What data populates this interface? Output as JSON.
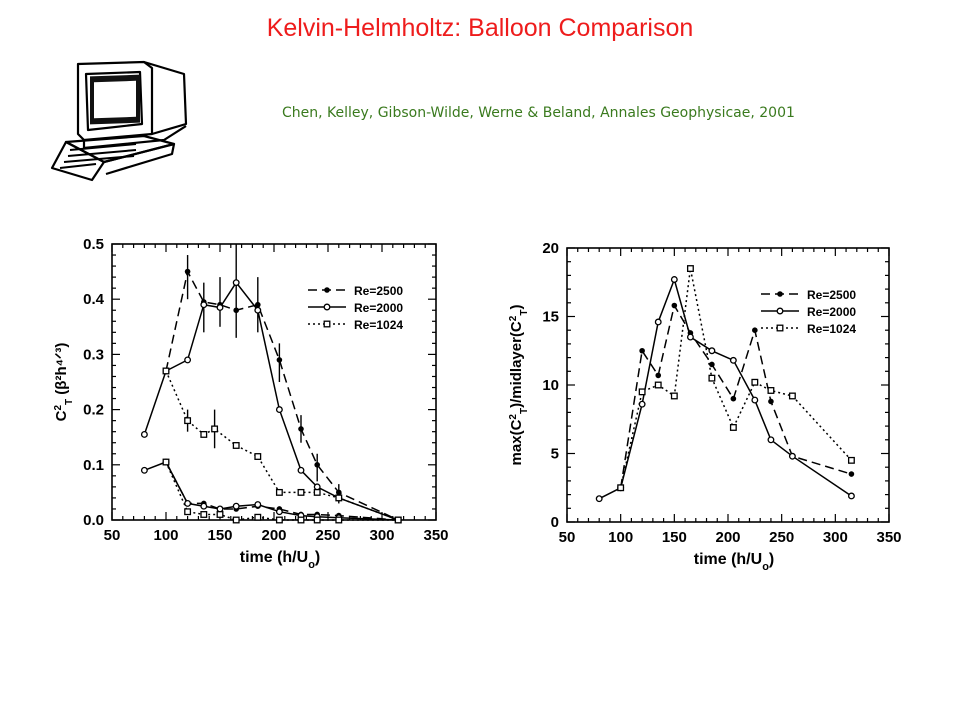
{
  "header": {
    "title": "Kelvin-Helmholtz: Balloon Comparison",
    "title_color": "#ee1c1c",
    "subtitle": "Chen, Kelley, Gibson-Wilde, Werne & Beland, Annales Geophysicae, 2001",
    "subtitle_color": "#3a7a1e"
  },
  "clipart": {
    "icon": "computer-terminal-icon"
  },
  "chart_data": [
    {
      "type": "line",
      "xlabel": "time (h/U",
      "xlabel_sub": "o",
      "xlabel_end": ")",
      "ylabel": "C",
      "ylabel_rest": " (β²h⁴ᐟ³)",
      "ylabel_sup": "2",
      "ylabel_sub": "T",
      "xlim": [
        50,
        350
      ],
      "ylim": [
        0,
        0.5
      ],
      "x_ticks": [
        "50",
        "100",
        "150",
        "200",
        "250",
        "300",
        "350"
      ],
      "y_ticks": [
        "0.0",
        "0.1",
        "0.2",
        "0.3",
        "0.4",
        "0.5"
      ],
      "grid": false,
      "legend_position": "top-right",
      "series": [
        {
          "name": "Re=2500",
          "style": "dashed",
          "marker": "filled-circle",
          "x": [
            100,
            120,
            135,
            150,
            165,
            185,
            205,
            225,
            240,
            260,
            315
          ],
          "y": [
            0.27,
            0.45,
            0.395,
            0.39,
            0.38,
            0.39,
            0.29,
            0.165,
            0.1,
            0.05,
            0.0
          ]
        },
        {
          "name": "Re=2000",
          "style": "solid",
          "marker": "open-circle",
          "x": [
            80,
            100,
            120,
            135,
            150,
            165,
            185,
            205,
            225,
            240,
            260,
            315
          ],
          "y": [
            0.155,
            0.27,
            0.29,
            0.39,
            0.385,
            0.43,
            0.38,
            0.2,
            0.09,
            0.06,
            0.04,
            0.0
          ]
        },
        {
          "name": "Re=1024",
          "style": "dotted",
          "marker": "open-square",
          "x": [
            100,
            120,
            135,
            145,
            165,
            185,
            205,
            225,
            240,
            260,
            315
          ],
          "y": [
            0.27,
            0.18,
            0.155,
            0.165,
            0.135,
            0.115,
            0.05,
            0.05,
            0.05,
            0.04,
            0.0
          ]
        },
        {
          "name": "",
          "style": "dashed",
          "marker": "filled-circle",
          "x": [
            100,
            120,
            135,
            150,
            165,
            185,
            205,
            225,
            240,
            260,
            315
          ],
          "y": [
            0.105,
            0.03,
            0.03,
            0.02,
            0.02,
            0.025,
            0.02,
            0.01,
            0.01,
            0.008,
            0.0
          ]
        },
        {
          "name": "",
          "style": "solid",
          "marker": "open-circle",
          "x": [
            80,
            100,
            120,
            135,
            150,
            165,
            185,
            205,
            225,
            240,
            260,
            315
          ],
          "y": [
            0.09,
            0.105,
            0.03,
            0.025,
            0.02,
            0.025,
            0.028,
            0.015,
            0.008,
            0.006,
            0.004,
            0.0
          ]
        },
        {
          "name": "",
          "style": "dotted",
          "marker": "open-square",
          "x": [
            100,
            120,
            135,
            150,
            165,
            185,
            205,
            225,
            240,
            260,
            315
          ],
          "y": [
            0.105,
            0.015,
            0.01,
            0.01,
            0.0,
            0.005,
            0.0,
            0.0,
            0.0,
            0.0,
            0.0
          ]
        }
      ],
      "error_bars": [
        {
          "x": 120,
          "y": 0.45,
          "low": 0.4,
          "high": 0.48
        },
        {
          "x": 135,
          "y": 0.39,
          "low": 0.34,
          "high": 0.43
        },
        {
          "x": 150,
          "y": 0.39,
          "low": 0.35,
          "high": 0.44
        },
        {
          "x": 165,
          "y": 0.43,
          "low": 0.33,
          "high": 0.5
        },
        {
          "x": 185,
          "y": 0.385,
          "low": 0.34,
          "high": 0.44
        },
        {
          "x": 205,
          "y": 0.29,
          "low": 0.25,
          "high": 0.32
        },
        {
          "x": 225,
          "y": 0.165,
          "low": 0.14,
          "high": 0.19
        },
        {
          "x": 240,
          "y": 0.1,
          "low": 0.07,
          "high": 0.12
        },
        {
          "x": 260,
          "y": 0.05,
          "low": 0.03,
          "high": 0.065
        },
        {
          "x": 120,
          "y": 0.18,
          "low": 0.16,
          "high": 0.2
        },
        {
          "x": 145,
          "y": 0.165,
          "low": 0.13,
          "high": 0.2
        }
      ]
    },
    {
      "type": "line",
      "xlabel": "time (h/U",
      "xlabel_sub": "o",
      "xlabel_end": ")",
      "ylabel": "max(C",
      "ylabel_sup": "2",
      "ylabel_sub": "T",
      "ylabel_rest": ")/midlayer(C",
      "ylabel_end": ")",
      "xlim": [
        50,
        350
      ],
      "ylim": [
        0,
        20
      ],
      "x_ticks": [
        "50",
        "100",
        "150",
        "200",
        "250",
        "300",
        "350"
      ],
      "y_ticks": [
        "0",
        "5",
        "10",
        "15",
        "20"
      ],
      "grid": false,
      "legend_position": "top-right",
      "series": [
        {
          "name": "Re=2500",
          "style": "dashed",
          "marker": "filled-circle",
          "x": [
            100,
            120,
            135,
            150,
            165,
            185,
            205,
            225,
            240,
            260,
            315
          ],
          "y": [
            2.5,
            12.5,
            10.7,
            15.8,
            13.8,
            11.5,
            9.0,
            14.0,
            8.8,
            4.8,
            3.5
          ]
        },
        {
          "name": "Re=2000",
          "style": "solid",
          "marker": "open-circle",
          "x": [
            80,
            100,
            120,
            135,
            150,
            165,
            185,
            205,
            225,
            240,
            260,
            315
          ],
          "y": [
            1.7,
            2.5,
            8.6,
            14.6,
            17.7,
            13.5,
            12.5,
            11.8,
            8.9,
            6.0,
            4.8,
            1.9
          ]
        },
        {
          "name": "Re=1024",
          "style": "dotted",
          "marker": "open-square",
          "x": [
            100,
            120,
            135,
            150,
            165,
            185,
            205,
            225,
            240,
            260,
            315
          ],
          "y": [
            2.5,
            9.5,
            10.0,
            9.2,
            18.5,
            10.5,
            6.9,
            10.2,
            9.6,
            9.2,
            4.5
          ]
        }
      ]
    }
  ]
}
